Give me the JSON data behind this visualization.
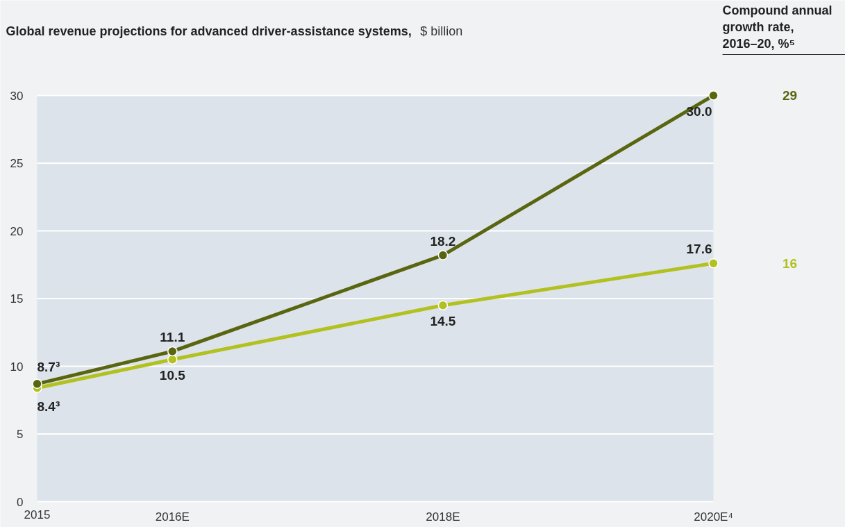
{
  "chart_data": {
    "type": "line",
    "title": "Global revenue projections for advanced driver-assistance systems,",
    "subtitle": "$ billion",
    "x": [
      2015,
      2016,
      2018,
      2020
    ],
    "series": [
      {
        "color": "#b2c11f",
        "values": [
          8.4,
          10.5,
          14.5,
          17.6
        ],
        "value_labels": [
          "8.4³",
          "10.5",
          "14.5",
          "17.6"
        ]
      },
      {
        "color": "#5a6510",
        "values": [
          8.7,
          11.1,
          18.2,
          30.0
        ],
        "value_labels": [
          "8.7³",
          "11.1",
          "18.2",
          "30.0"
        ]
      }
    ],
    "xlim": [
      2015,
      2020
    ],
    "xticks": [
      2015,
      {
        "value": 2016,
        "label": "2016E"
      },
      {
        "value": 2018,
        "label": "2018E"
      },
      {
        "value": 2020,
        "label": "2020E⁴"
      }
    ],
    "ylim": [
      0,
      30
    ],
    "yticks": [
      0,
      5,
      10,
      15,
      20,
      25,
      30
    ],
    "grid": "y",
    "marker": "circle",
    "annotations": [
      "Compound annual growth rate, 2016–20, %⁵",
      "16",
      "29"
    ]
  }
}
